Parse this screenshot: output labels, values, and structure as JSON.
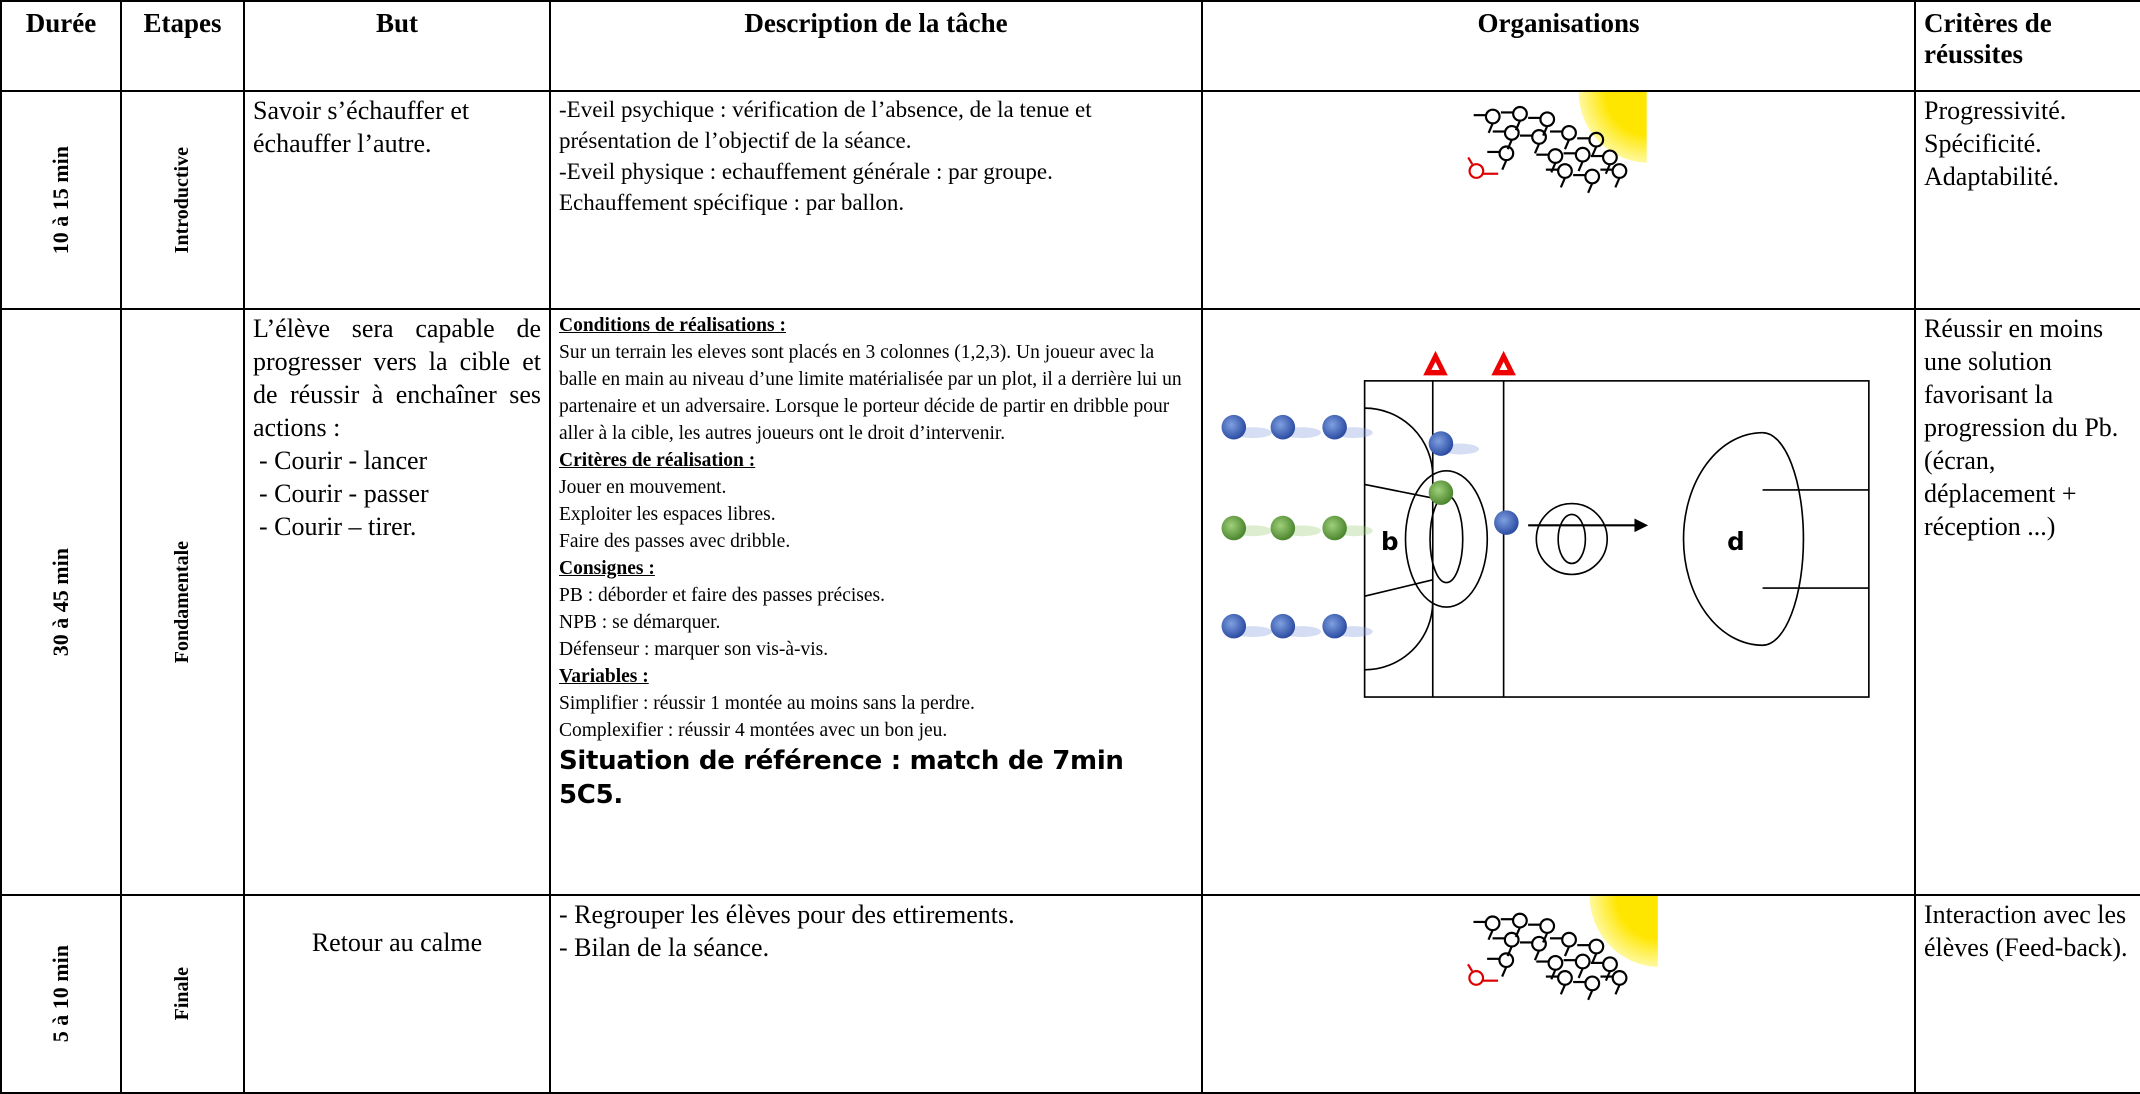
{
  "table": {
    "header": [
      "Durée",
      "Etapes",
      "But",
      "Description de la tâche",
      "Organisations",
      "Critères de réussites"
    ],
    "rows": [
      {
        "duration": "10 à 15 min",
        "stage": "Introductive",
        "goal": "Savoir s’échauffer et échauffer l’autre.",
        "description": [
          "-Eveil psychique : vérification de l’absence, de la tenue et présentation de l’objectif de la séance.",
          "-Eveil physique : echauffement générale : par groupe.",
          "Echauffement spécifique : par ballon."
        ],
        "criteria": [
          "Progressivité.",
          "Spécificité.",
          "Adaptabilité."
        ]
      },
      {
        "duration": "30 à 45 min",
        "stage": "Fondamentale",
        "goal": "L’élève sera capable de progresser vers la cible et de réussir à enchaîner ses actions :",
        "goal_items": [
          "- Courir - lancer",
          "- Courir - passer",
          "- Courir – tirer."
        ],
        "description_sections": [
          {
            "heading": "Conditions de réalisations :",
            "lines": [
              "Sur un terrain les eleves sont placés en 3 colonnes (1,2,3). Un joueur avec la balle en main au niveau d’une limite matérialisée par un plot, il a derrière lui un partenaire et un adversaire. Lorsque le porteur décide de partir en dribble pour aller à la cible, les autres joueurs ont le droit d’intervenir."
            ]
          },
          {
            "heading": "Critères de réalisation :",
            "lines": [
              "Jouer en mouvement.",
              "Exploiter les espaces libres.",
              "Faire des passes avec dribble."
            ]
          },
          {
            "heading": "Consignes :",
            "lines": [
              "PB : déborder et faire des passes précises.",
              "NPB : se démarquer.",
              "Défenseur : marquer son vis-à-vis."
            ]
          },
          {
            "heading": "Variables :",
            "lines": [
              "Simplifier : réussir 1 montée au moins sans  la perdre.",
              "Complexifier : réussir 4 montées avec un bon jeu."
            ]
          }
        ],
        "reference": "Situation de référence : match de 7min 5C5.",
        "court_labels": [
          "b",
          "d"
        ],
        "criteria": "Réussir en moins une solution favorisant la progression du Pb. (écran, déplacement + réception ...)"
      },
      {
        "duration": "5 à 10 min",
        "stage": "Finale",
        "goal": "Retour au calme",
        "description": [
          "- Regrouper les élèves pour des ettirements.",
          "- Bilan de la séance."
        ],
        "criteria": "Interaction avec les élèves (Feed-back)."
      }
    ]
  }
}
